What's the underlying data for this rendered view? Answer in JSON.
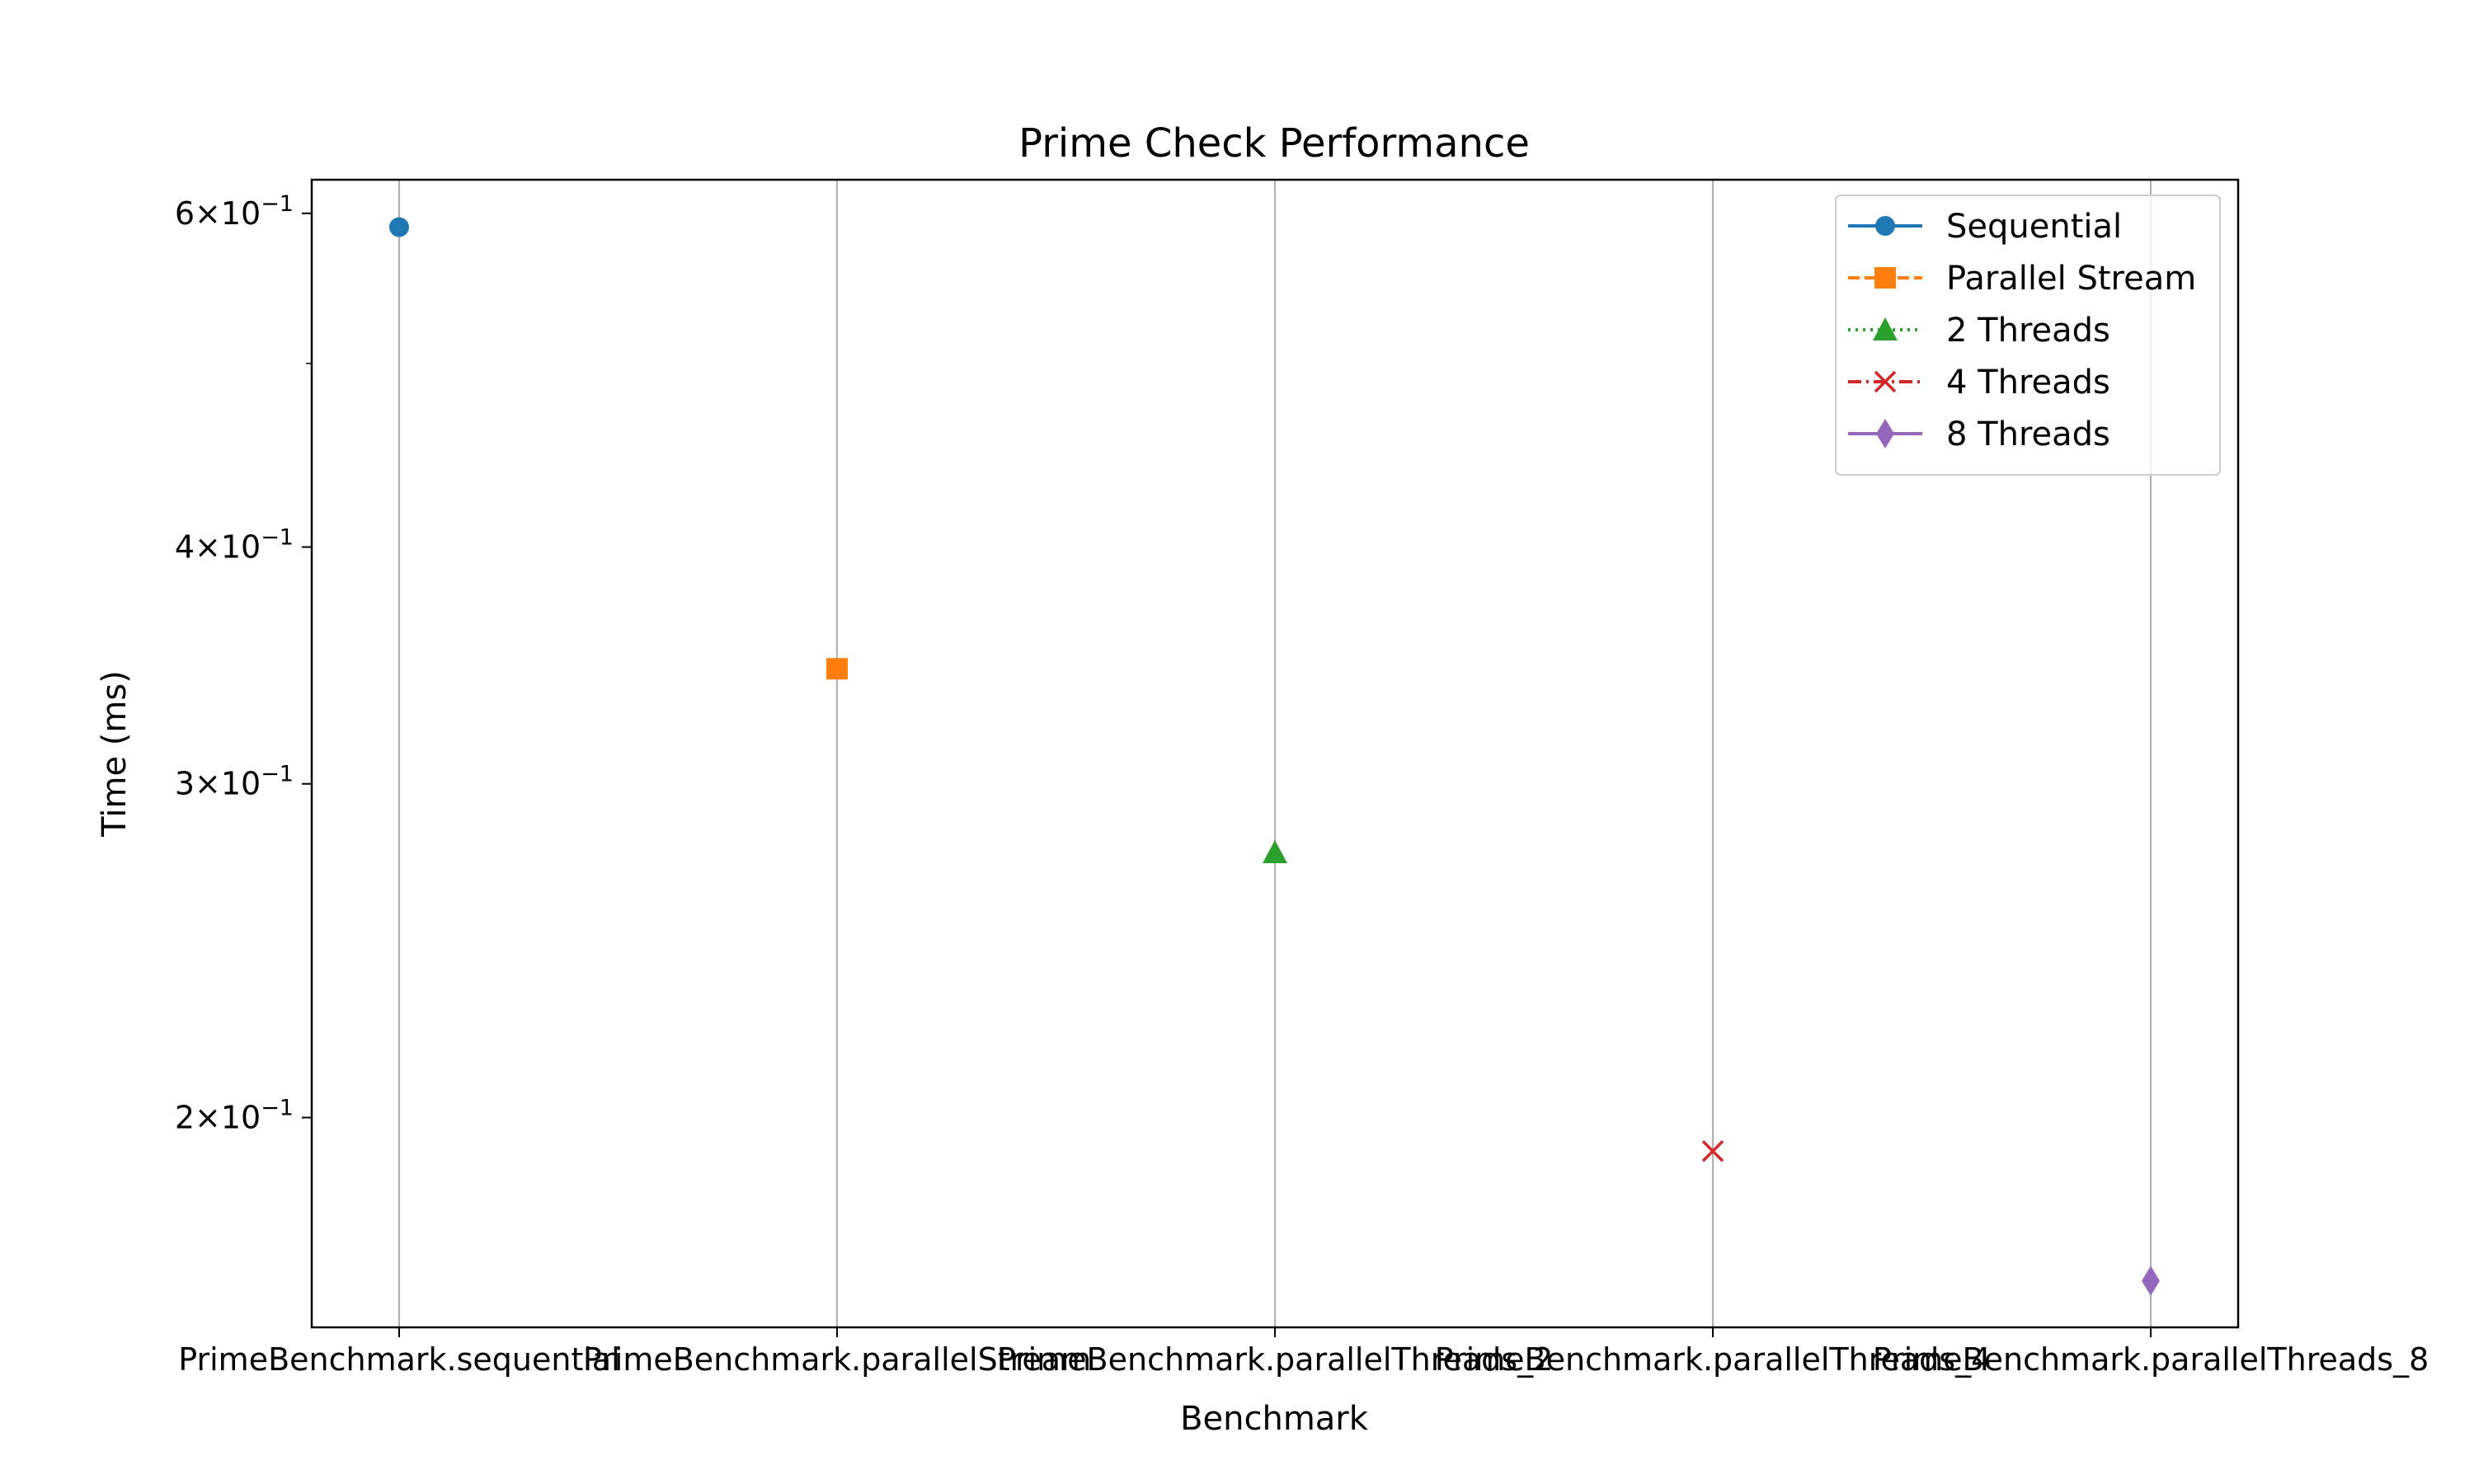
{
  "chart_data": {
    "type": "scatter",
    "title": "Prime Check Performance",
    "xlabel": "Benchmark",
    "ylabel": "Time (ms)",
    "yscale": "log",
    "ylim": [
      0.155,
      0.625
    ],
    "categories": [
      "PrimeBenchmark.sequential",
      "PrimeBenchmark.parallelStream",
      "PrimeBenchmark.parallelThreads_2",
      "PrimeBenchmark.parallelThreads_4",
      "PrimeBenchmark.parallelThreads_8"
    ],
    "y_ticks": [
      {
        "value": 0.6,
        "mantissa": "6",
        "base": "10",
        "exponent": "−1"
      },
      {
        "value": 0.4,
        "mantissa": "4",
        "base": "10",
        "exponent": "−1"
      },
      {
        "value": 0.3,
        "mantissa": "3",
        "base": "10",
        "exponent": "−1"
      },
      {
        "value": 0.2,
        "mantissa": "2",
        "base": "10",
        "exponent": "−1"
      }
    ],
    "y_minor_ticks": [
      0.5
    ],
    "grid": "x-only",
    "legend_position": "top-right",
    "series": [
      {
        "name": "Sequential",
        "category_index": 0,
        "value": 0.59,
        "color": "#1f77b4",
        "marker": "circle",
        "linestyle": "solid"
      },
      {
        "name": "Parallel Stream",
        "category_index": 1,
        "value": 0.345,
        "color": "#ff7f0e",
        "marker": "square",
        "linestyle": "dashed"
      },
      {
        "name": "2 Threads",
        "category_index": 2,
        "value": 0.276,
        "color": "#2ca02c",
        "marker": "triangle",
        "linestyle": "dotted"
      },
      {
        "name": "4 Threads",
        "category_index": 3,
        "value": 0.192,
        "color": "#d62728",
        "marker": "x",
        "linestyle": "dashdot"
      },
      {
        "name": "8 Threads",
        "category_index": 4,
        "value": 0.164,
        "color": "#9467bd",
        "marker": "diamond",
        "linestyle": "solid"
      }
    ]
  }
}
